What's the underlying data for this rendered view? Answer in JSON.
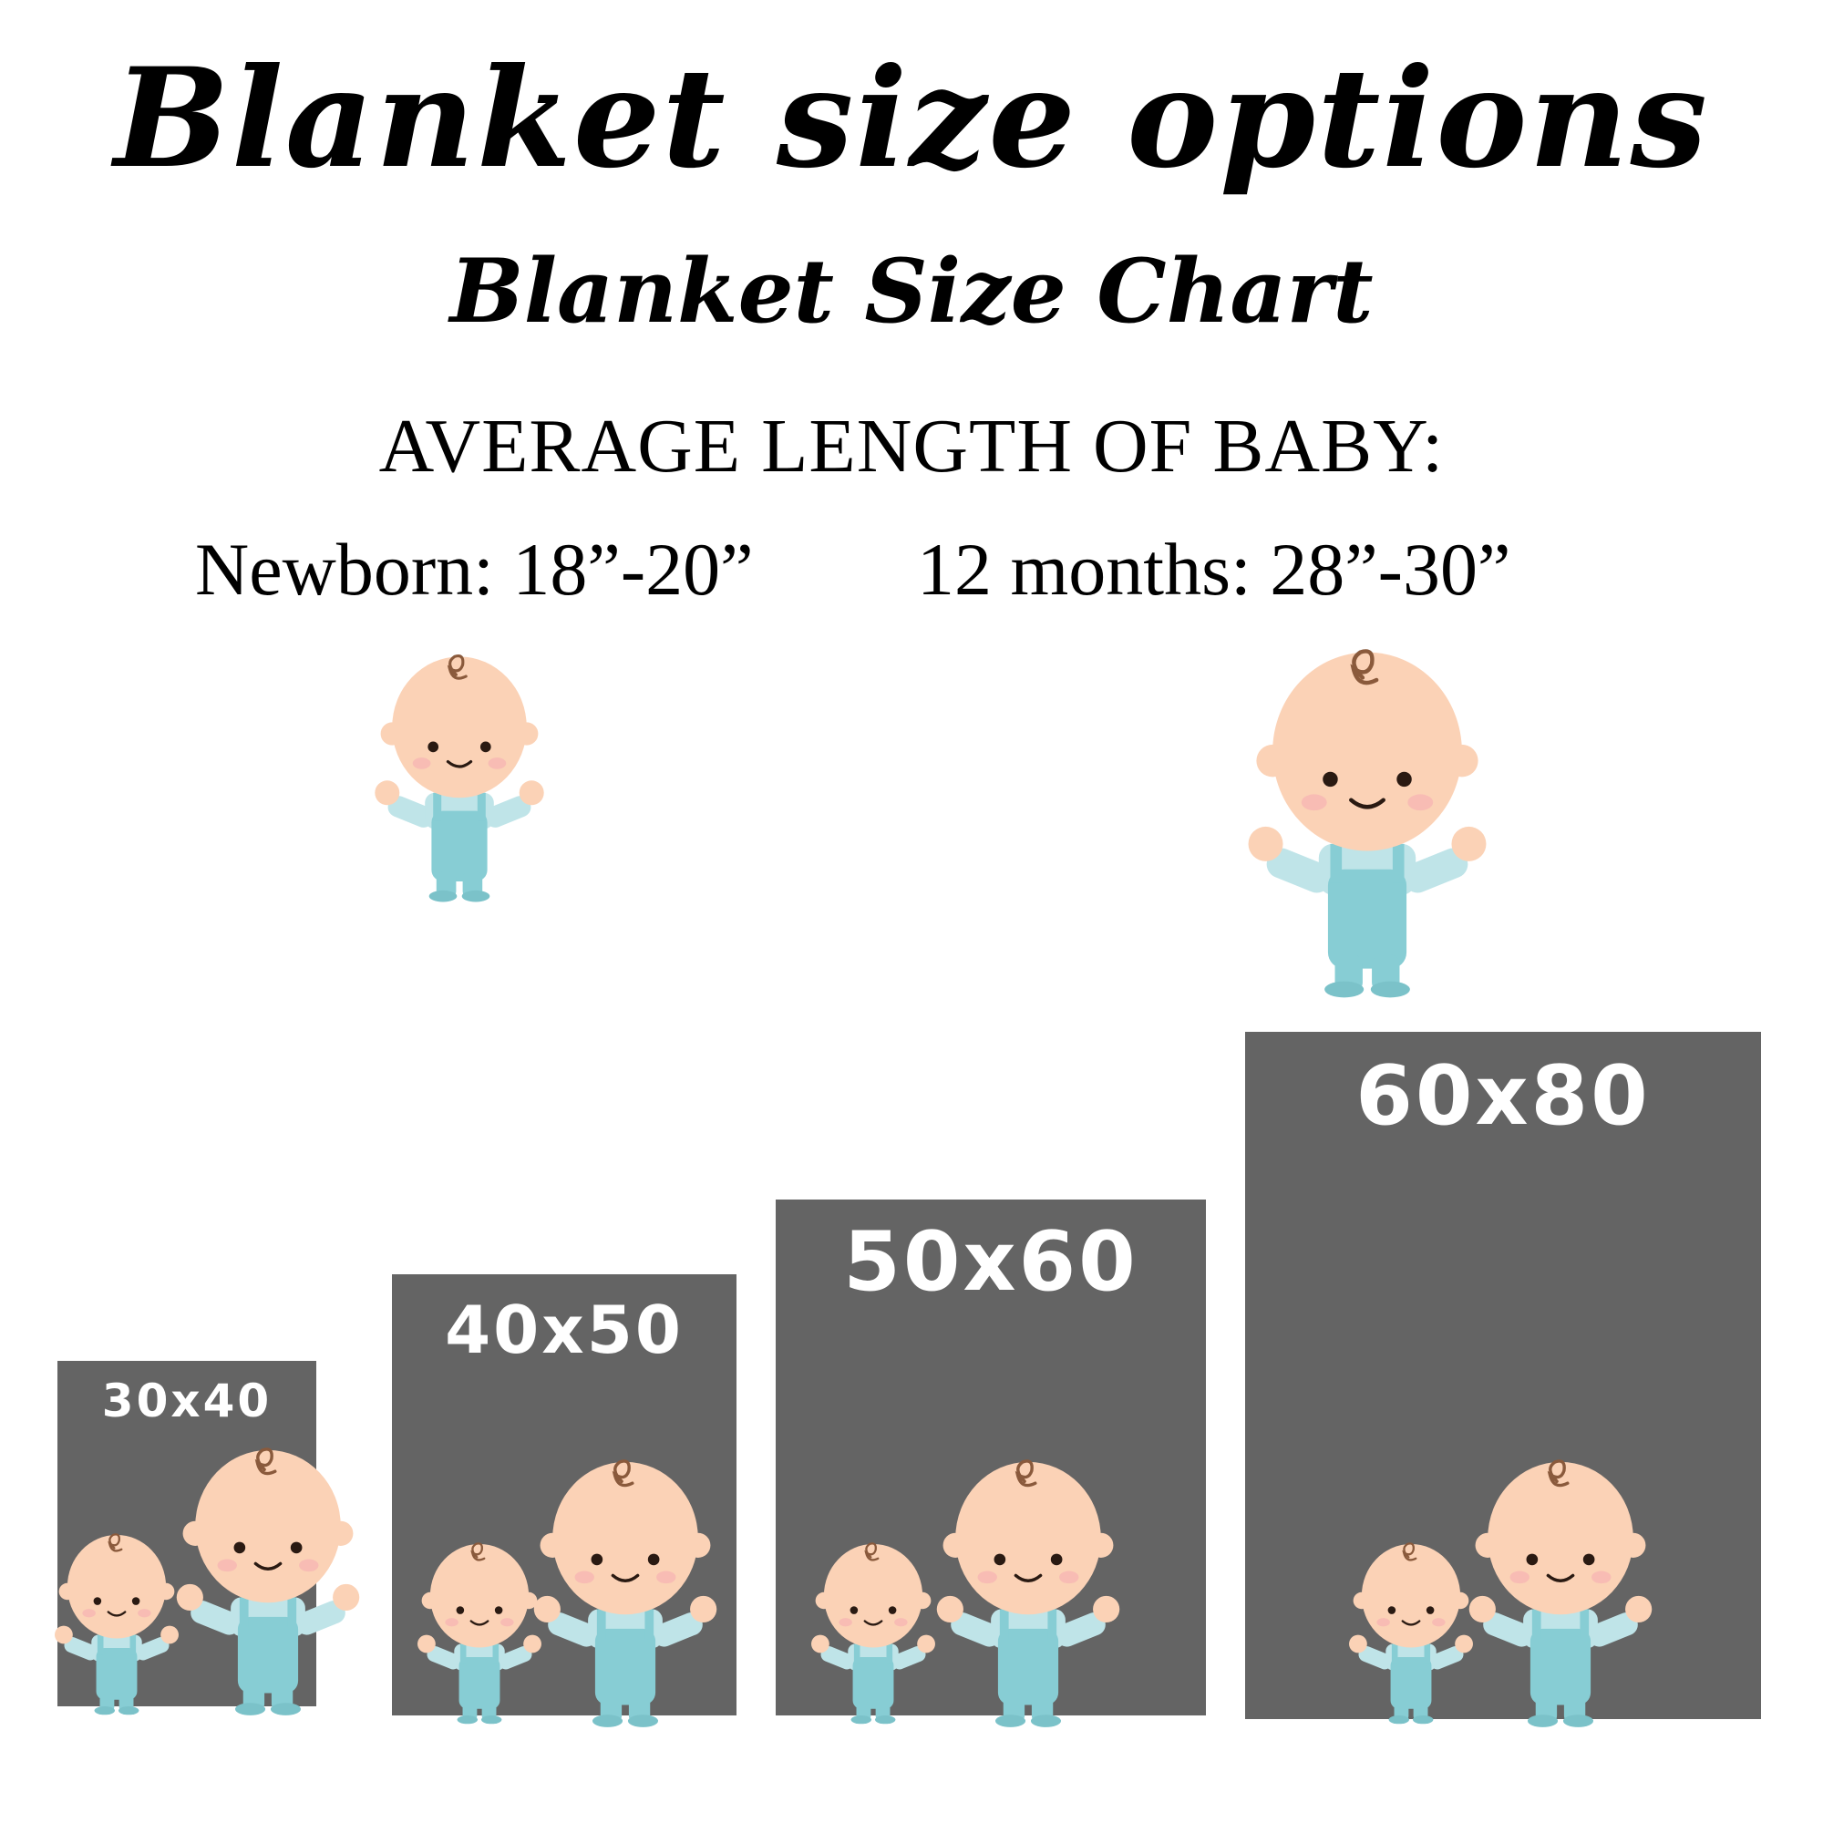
{
  "title": "Blanket size options",
  "subtitle": "Blanket Size Chart",
  "average_heading": "AVERAGE LENGTH OF BABY:",
  "measurements": [
    {
      "label": "Newborn: 18”-20”"
    },
    {
      "label": "12 months: 28”-30”"
    }
  ],
  "blankets": [
    {
      "label": "30x40"
    },
    {
      "label": "40x50"
    },
    {
      "label": "50x60"
    },
    {
      "label": "60x80"
    }
  ],
  "colors": {
    "blanket": "#646464",
    "blanket_text": "#ffffff",
    "skin": "#fbd2b6",
    "cheek": "#f6b2b4",
    "overalls": "#87cdd4",
    "shirt": "#bfe4e8",
    "hair": "#8a5a3c"
  },
  "icons": {
    "baby": "baby-in-overalls-icon"
  }
}
